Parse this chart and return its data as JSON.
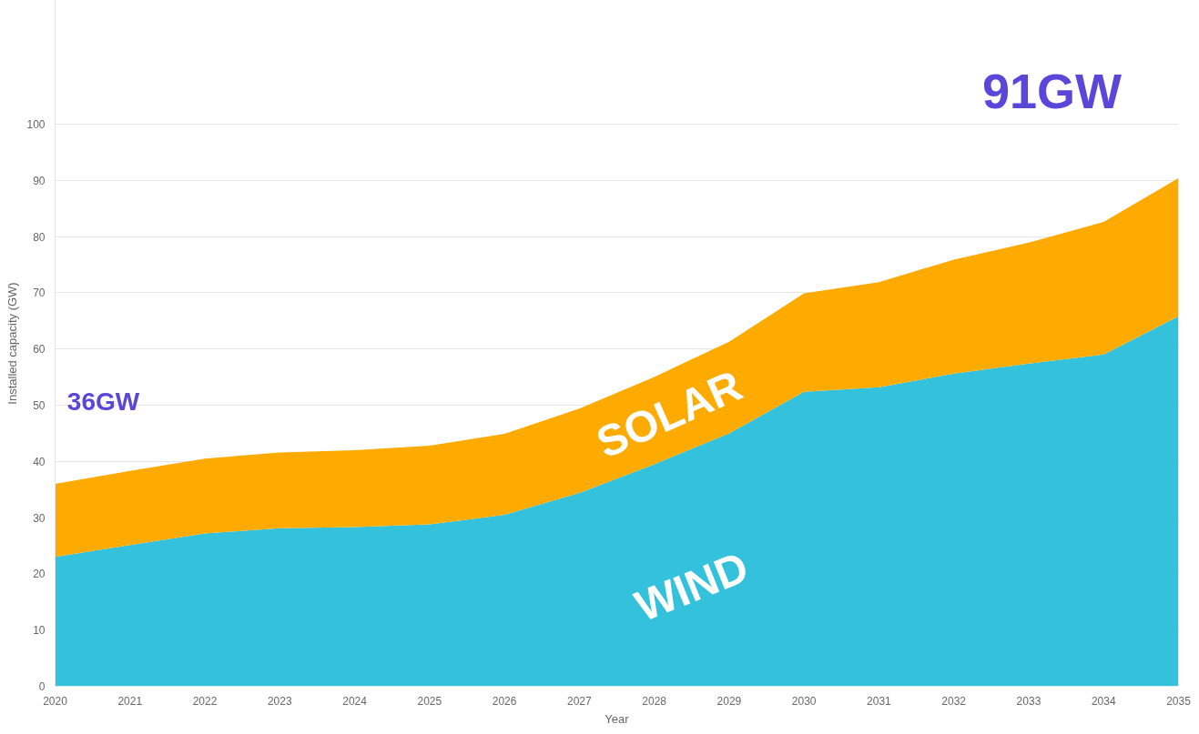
{
  "chart_data": {
    "type": "area",
    "stacked": true,
    "xlabel": "Year",
    "ylabel": "Installed capacity (GW)",
    "x": [
      2020,
      2021,
      2022,
      2023,
      2024,
      2025,
      2026,
      2027,
      2028,
      2029,
      2030,
      2031,
      2032,
      2033,
      2034,
      2035
    ],
    "series": [
      {
        "name": "WIND",
        "color": "#33c1dc",
        "values": [
          23.0,
          25.1,
          27.2,
          28.1,
          28.3,
          28.8,
          30.5,
          34.4,
          39.5,
          45.0,
          52.4,
          53.2,
          55.6,
          57.4,
          59.0,
          65.8
        ]
      },
      {
        "name": "SOLAR",
        "color": "#fdab00",
        "values": [
          13.0,
          13.2,
          13.3,
          13.5,
          13.7,
          14.0,
          14.4,
          15.0,
          15.5,
          16.3,
          17.5,
          18.7,
          20.3,
          21.5,
          23.6,
          24.6
        ]
      }
    ],
    "annotations": [
      {
        "text": "36GW",
        "x": 2020,
        "y": 36
      },
      {
        "text": "91GW",
        "x": 2035,
        "y": 91
      }
    ],
    "xlim": [
      2020,
      2035
    ],
    "ylim": [
      0,
      122
    ],
    "xticks": [
      2020,
      2021,
      2022,
      2023,
      2024,
      2025,
      2026,
      2027,
      2028,
      2029,
      2030,
      2031,
      2032,
      2033,
      2034,
      2035
    ],
    "yticks": [
      0,
      10,
      20,
      30,
      40,
      50,
      60,
      70,
      80,
      90,
      100
    ],
    "grid": "y"
  }
}
